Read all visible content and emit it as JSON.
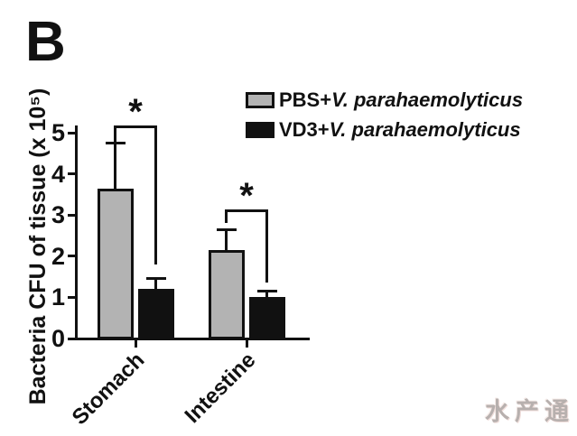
{
  "panel_label": "B",
  "watermark": "水产通",
  "legend": {
    "entries": [
      {
        "prefix": "PBS+",
        "species": "V. parahaemolyticus",
        "color": "#b3b3b3"
      },
      {
        "prefix": "VD3+",
        "species": "V. parahaemolyticus",
        "color": "#111111"
      }
    ]
  },
  "chart_data": {
    "type": "bar",
    "title": "",
    "categories": [
      "Stomach",
      "Intestine"
    ],
    "series": [
      {
        "name": "PBS+V. parahaemolyticus",
        "color": "#b3b3b3",
        "values": [
          3.65,
          2.15
        ],
        "errors_plus": [
          1.1,
          0.5
        ]
      },
      {
        "name": "VD3+V. parahaemolyticus",
        "color": "#111111",
        "values": [
          1.2,
          1.0
        ],
        "errors_plus": [
          0.25,
          0.15
        ]
      }
    ],
    "ylabel": "Bacteria CFU of tissue (x 10⁵)",
    "xlabel": "",
    "y_ticks": [
      0,
      1,
      2,
      3,
      4,
      5
    ],
    "ylim": [
      0,
      5.15
    ],
    "grid": false,
    "legend_position": "top-right",
    "axis_color": "#111111",
    "significance": [
      {
        "category": "Stomach",
        "label": "*",
        "bar_top": 5.15,
        "left_drop_to": 4.78,
        "right_drop_to": 1.8
      },
      {
        "category": "Intestine",
        "label": "*",
        "bar_top": 3.11,
        "left_drop_to": 2.81,
        "right_drop_to": 1.36
      }
    ]
  }
}
